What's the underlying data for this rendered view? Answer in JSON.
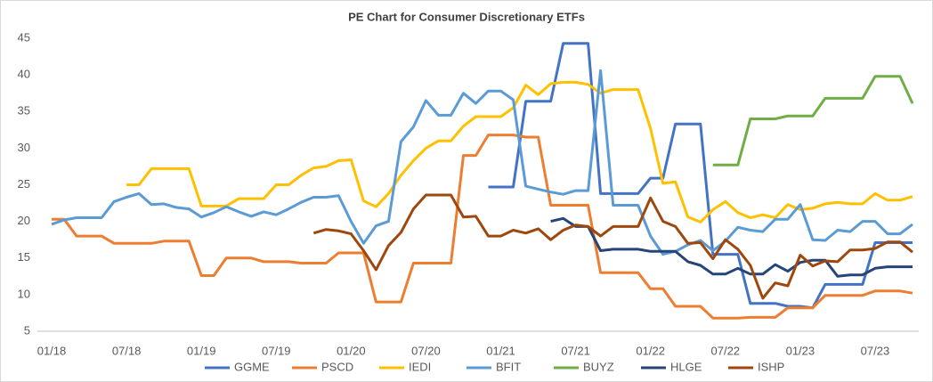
{
  "chart_data": {
    "type": "line",
    "title": "PE Chart for Consumer Discretionary ETFs",
    "categories": [
      "01/18",
      null,
      null,
      null,
      null,
      null,
      "07/18",
      null,
      null,
      null,
      null,
      null,
      "01/19",
      null,
      null,
      null,
      null,
      null,
      "07/19",
      null,
      null,
      null,
      null,
      null,
      "01/20",
      null,
      null,
      null,
      null,
      null,
      "07/20",
      null,
      null,
      null,
      null,
      null,
      "01/21",
      null,
      null,
      null,
      null,
      null,
      "07/21",
      null,
      null,
      null,
      null,
      null,
      "01/22",
      null,
      null,
      null,
      null,
      null,
      "07/22",
      null,
      null,
      null,
      null,
      null,
      "01/23",
      null,
      null,
      null,
      null,
      null,
      "07/23",
      null,
      null,
      null
    ],
    "ylim": [
      5,
      45
    ],
    "yticks": [
      5,
      10,
      15,
      20,
      25,
      30,
      35,
      40,
      45
    ],
    "grid": false,
    "legend": "bottom",
    "series": [
      {
        "name": "GGME",
        "color": "#4472c4",
        "values": [
          null,
          null,
          null,
          null,
          null,
          null,
          null,
          null,
          null,
          null,
          null,
          null,
          null,
          null,
          null,
          null,
          null,
          null,
          null,
          null,
          null,
          null,
          null,
          null,
          null,
          null,
          null,
          null,
          null,
          null,
          null,
          null,
          null,
          null,
          null,
          24.7,
          24.7,
          24.7,
          36.4,
          36.4,
          36.4,
          44.3,
          44.3,
          44.3,
          23.8,
          23.8,
          23.8,
          23.8,
          25.9,
          25.9,
          33.3,
          33.3,
          33.3,
          15.5,
          15.5,
          15.5,
          8.8,
          8.8,
          8.8,
          8.4,
          8.4,
          8.2,
          11.4,
          11.4,
          11.4,
          11.4,
          17.1,
          17.1,
          17.1,
          17.1
        ]
      },
      {
        "name": "PSCD",
        "color": "#ed7d31",
        "values": [
          20.3,
          20.3,
          18,
          18,
          18,
          17,
          17,
          17,
          17,
          17.3,
          17.3,
          17.3,
          12.6,
          12.6,
          15,
          15,
          15,
          14.5,
          14.5,
          14.5,
          14.3,
          14.3,
          14.3,
          15.7,
          15.7,
          15.7,
          9,
          9,
          9,
          14.3,
          14.3,
          14.3,
          14.3,
          29,
          29,
          31.8,
          31.8,
          31.8,
          31.5,
          31.5,
          22.2,
          22.2,
          22.2,
          22.2,
          13,
          13,
          13,
          13,
          10.8,
          10.8,
          8.4,
          8.4,
          8.4,
          6.8,
          6.8,
          6.8,
          6.9,
          6.9,
          6.9,
          8.2,
          8.2,
          8.2,
          9.9,
          9.9,
          9.9,
          9.9,
          10.5,
          10.5,
          10.5,
          10.2
        ]
      },
      {
        "name": "IEDI",
        "color": "#ffc000",
        "values": [
          null,
          null,
          null,
          null,
          null,
          null,
          25,
          25,
          27.2,
          27.2,
          27.2,
          27.2,
          22.1,
          22.1,
          22.1,
          23.1,
          23.1,
          23.1,
          25,
          25,
          26.3,
          27.3,
          27.5,
          28.3,
          28.4,
          22.8,
          22,
          23.8,
          26.3,
          28.3,
          30,
          31,
          31,
          33,
          34.3,
          34.3,
          34.3,
          35.5,
          38.6,
          37.3,
          38.8,
          39,
          39,
          38.7,
          37.5,
          38,
          38,
          38,
          32.7,
          25.2,
          25.4,
          20.6,
          19.9,
          21.6,
          22.7,
          21.2,
          20.5,
          20.9,
          20.5,
          22.3,
          21.6,
          21.8,
          22.4,
          22.6,
          22.4,
          22.4,
          23.8,
          22.9,
          22.9,
          23.4
        ]
      },
      {
        "name": "BFIT",
        "color": "#5b9bd5",
        "values": [
          19.6,
          20.2,
          20.5,
          20.5,
          20.5,
          22.7,
          23.3,
          23.8,
          22.3,
          22.4,
          21.9,
          21.7,
          20.6,
          21.2,
          22,
          21.3,
          20.7,
          21.3,
          20.9,
          21.7,
          22.6,
          23.3,
          23.3,
          23.5,
          20,
          17,
          19.4,
          20,
          30.9,
          32.9,
          36.5,
          34.5,
          34.5,
          37.5,
          36.1,
          37.8,
          37.8,
          36.6,
          24.8,
          24.4,
          24,
          23.7,
          24.2,
          24.2,
          40.6,
          22.2,
          22.2,
          22.2,
          18,
          15.5,
          15.9,
          16.8,
          17.4,
          16,
          17.3,
          19.2,
          18.8,
          18.6,
          20.3,
          20.3,
          22.3,
          17.5,
          17.4,
          18.8,
          18.6,
          20,
          20,
          18.3,
          18.3,
          19.6
        ]
      },
      {
        "name": "BUYZ",
        "color": "#70ad47",
        "values": [
          null,
          null,
          null,
          null,
          null,
          null,
          null,
          null,
          null,
          null,
          null,
          null,
          null,
          null,
          null,
          null,
          null,
          null,
          null,
          null,
          null,
          null,
          null,
          null,
          null,
          null,
          null,
          null,
          null,
          null,
          null,
          null,
          null,
          null,
          null,
          null,
          null,
          null,
          null,
          null,
          null,
          null,
          null,
          null,
          null,
          null,
          null,
          null,
          null,
          null,
          null,
          null,
          null,
          27.7,
          27.7,
          27.7,
          34,
          34,
          34,
          34.4,
          34.4,
          34.4,
          36.8,
          36.8,
          36.8,
          36.8,
          39.8,
          39.8,
          39.8,
          36.1
        ]
      },
      {
        "name": "HLGE",
        "color": "#264478",
        "values": [
          null,
          null,
          null,
          null,
          null,
          null,
          null,
          null,
          null,
          null,
          null,
          null,
          null,
          null,
          null,
          null,
          null,
          null,
          null,
          null,
          null,
          null,
          null,
          null,
          null,
          null,
          null,
          null,
          null,
          null,
          null,
          null,
          null,
          null,
          null,
          null,
          null,
          null,
          null,
          null,
          20,
          20.4,
          19.3,
          19.3,
          16,
          16.2,
          16.2,
          16.2,
          15.9,
          15.9,
          15.9,
          14.5,
          14,
          12.8,
          12.8,
          13.6,
          12.8,
          12.8,
          14.1,
          13.2,
          14.4,
          14.7,
          14.7,
          12.5,
          12.7,
          12.7,
          13.6,
          13.8,
          13.8,
          13.8
        ]
      },
      {
        "name": "ISHP",
        "color": "#9e480e",
        "values": [
          null,
          null,
          null,
          null,
          null,
          null,
          null,
          null,
          null,
          null,
          null,
          null,
          null,
          null,
          null,
          null,
          null,
          null,
          null,
          null,
          null,
          18.4,
          18.9,
          18.7,
          18.3,
          16,
          13.4,
          16.7,
          18.5,
          21.7,
          23.6,
          23.6,
          23.6,
          20.6,
          20.7,
          18,
          18,
          18.8,
          18.4,
          19,
          17.5,
          18.8,
          19.5,
          19.3,
          18,
          19.3,
          19.3,
          19.3,
          23.2,
          20,
          19.3,
          17,
          17.1,
          14.9,
          17.5,
          16.2,
          14,
          9.5,
          11.6,
          11.2,
          15.4,
          13.9,
          14.6,
          14.5,
          16.1,
          16.1,
          16.3,
          17.2,
          17.2,
          15.8
        ]
      }
    ]
  }
}
